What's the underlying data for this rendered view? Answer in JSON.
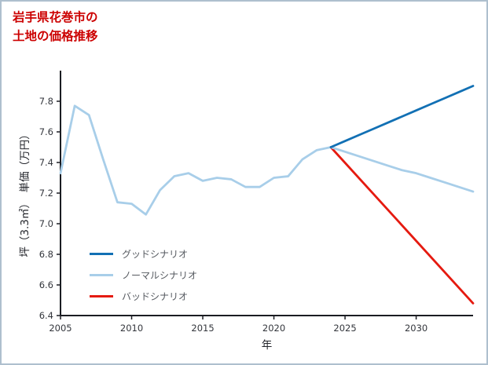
{
  "header": {
    "title": "岩手県花巻市の\n土地の価格推移",
    "title_color": "#cc0000"
  },
  "chart_data": {
    "type": "line",
    "title": "岩手県花巻市の土地の価格推移",
    "xlabel": "年",
    "ylabel": "坪（3.3㎡）　単価（万円）",
    "xlim": [
      2005,
      2034
    ],
    "ylim": [
      6.4,
      8.0
    ],
    "xticks": [
      2005,
      2010,
      2015,
      2020,
      2025,
      2030
    ],
    "yticks": [
      6.4,
      6.6,
      6.8,
      7.0,
      7.2,
      7.4,
      7.6,
      7.8
    ],
    "grid": false,
    "legend_position": "lower left",
    "axis_color": "#1a1c22",
    "series": [
      {
        "name": "グッドシナリオ",
        "color": "#1270b4",
        "x": [
          2024,
          2025,
          2026,
          2027,
          2028,
          2029,
          2030,
          2031,
          2032,
          2033,
          2034
        ],
        "values": [
          7.5,
          7.54,
          7.58,
          7.62,
          7.66,
          7.7,
          7.74,
          7.78,
          7.82,
          7.86,
          7.9
        ]
      },
      {
        "name": "ノーマルシナリオ",
        "color": "#a8cee9",
        "x": [
          2005,
          2006,
          2007,
          2008,
          2009,
          2010,
          2011,
          2012,
          2013,
          2014,
          2015,
          2016,
          2017,
          2018,
          2019,
          2020,
          2021,
          2022,
          2023,
          2024,
          2025,
          2026,
          2027,
          2028,
          2029,
          2030,
          2031,
          2032,
          2033,
          2034
        ],
        "values": [
          7.33,
          7.77,
          7.71,
          7.42,
          7.14,
          7.13,
          7.06,
          7.22,
          7.31,
          7.33,
          7.28,
          7.3,
          7.29,
          7.24,
          7.24,
          7.3,
          7.31,
          7.42,
          7.48,
          7.5,
          7.47,
          7.44,
          7.41,
          7.38,
          7.35,
          7.33,
          7.3,
          7.27,
          7.24,
          7.21
        ]
      },
      {
        "name": "バッドシナリオ",
        "color": "#e51a10",
        "x": [
          2024,
          2034
        ],
        "values": [
          7.5,
          6.48
        ]
      }
    ]
  }
}
